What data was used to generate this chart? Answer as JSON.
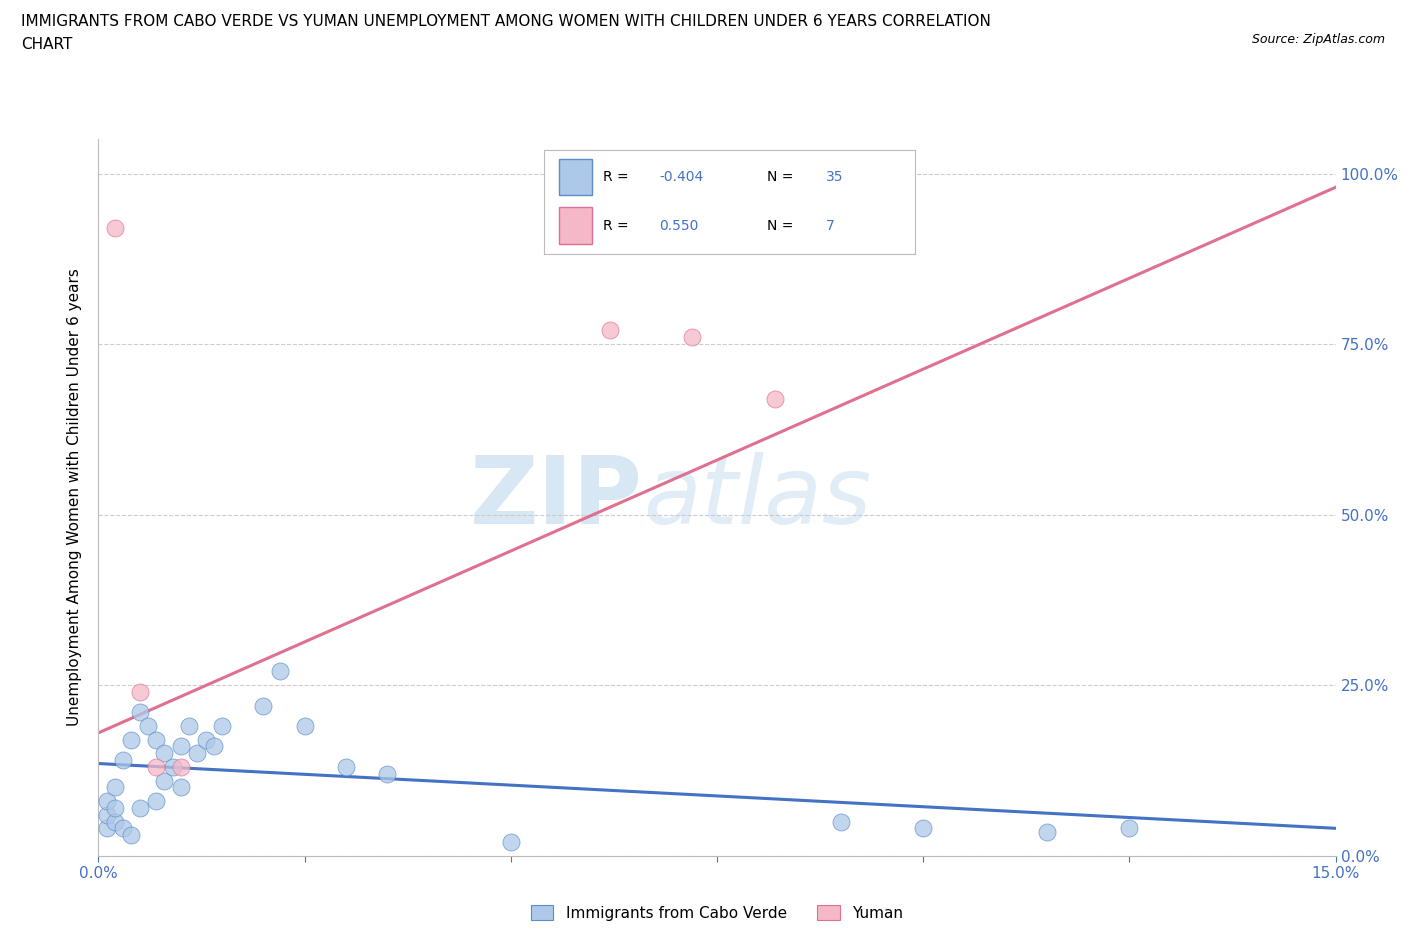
{
  "title_line1": "IMMIGRANTS FROM CABO VERDE VS YUMAN UNEMPLOYMENT AMONG WOMEN WITH CHILDREN UNDER 6 YEARS CORRELATION",
  "title_line2": "CHART",
  "source_text": "Source: ZipAtlas.com",
  "ylabel": "Unemployment Among Women with Children Under 6 years",
  "xlim": [
    0.0,
    0.15
  ],
  "ylim": [
    0.0,
    1.05
  ],
  "xticks": [
    0.0,
    0.025,
    0.05,
    0.075,
    0.1,
    0.125,
    0.15
  ],
  "xticklabels_show": {
    "0.0": "0.0%",
    "0.15": "15.0%"
  },
  "yticks": [
    0.0,
    0.25,
    0.5,
    0.75,
    1.0
  ],
  "right_yticklabels": [
    "0.0%",
    "25.0%",
    "50.0%",
    "75.0%",
    "100.0%"
  ],
  "legend_labels": [
    "Immigrants from Cabo Verde",
    "Yuman"
  ],
  "blue_R": -0.404,
  "blue_N": 35,
  "pink_R": 0.55,
  "pink_N": 7,
  "blue_color": "#adc8e8",
  "blue_edge_color": "#5b8dc8",
  "blue_line_color": "#4472c4",
  "pink_color": "#f4b8c8",
  "pink_edge_color": "#e07090",
  "pink_line_color": "#e07090",
  "watermark_zip": "ZIP",
  "watermark_atlas": "atlas",
  "title_fontsize": 11,
  "axis_color": "#4472c4",
  "grid_color": "#c8c8c8",
  "blue_scatter_x": [
    0.001,
    0.001,
    0.001,
    0.002,
    0.002,
    0.002,
    0.003,
    0.003,
    0.004,
    0.004,
    0.005,
    0.005,
    0.006,
    0.007,
    0.007,
    0.008,
    0.008,
    0.009,
    0.01,
    0.01,
    0.011,
    0.012,
    0.013,
    0.014,
    0.015,
    0.02,
    0.022,
    0.025,
    0.03,
    0.035,
    0.05,
    0.09,
    0.1,
    0.115,
    0.125
  ],
  "blue_scatter_y": [
    0.04,
    0.06,
    0.08,
    0.05,
    0.07,
    0.1,
    0.14,
    0.04,
    0.17,
    0.03,
    0.21,
    0.07,
    0.19,
    0.17,
    0.08,
    0.15,
    0.11,
    0.13,
    0.16,
    0.1,
    0.19,
    0.15,
    0.17,
    0.16,
    0.19,
    0.22,
    0.27,
    0.19,
    0.13,
    0.12,
    0.02,
    0.05,
    0.04,
    0.035,
    0.04
  ],
  "pink_scatter_x": [
    0.002,
    0.005,
    0.007,
    0.062,
    0.072,
    0.082,
    0.01
  ],
  "pink_scatter_y": [
    0.92,
    0.24,
    0.13,
    0.77,
    0.76,
    0.67,
    0.13
  ],
  "blue_line_x": [
    0.0,
    0.15
  ],
  "blue_line_y": [
    0.135,
    0.04
  ],
  "pink_line_x": [
    0.0,
    0.15
  ],
  "pink_line_y": [
    0.18,
    0.98
  ]
}
